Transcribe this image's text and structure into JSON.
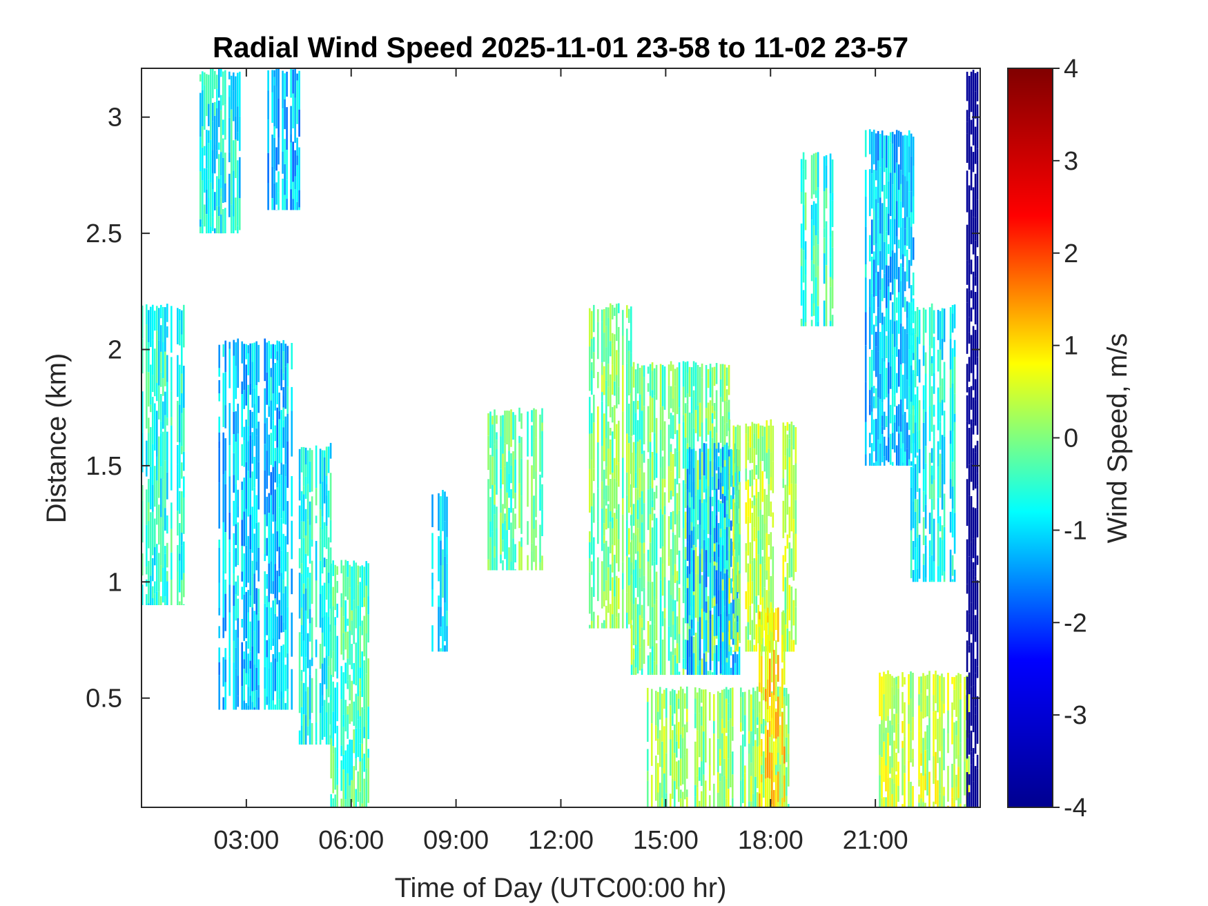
{
  "chart_data": {
    "type": "heatmap",
    "title": "Radial Wind Speed 2025-11-01 23-58 to 11-02 23-57",
    "xlabel": "Time of Day (UTC00:00 hr)",
    "ylabel": "Distance (km)",
    "colorbar_label": "Wind Speed, m/s",
    "colormap": "jet",
    "colormap_stops": [
      "#00008f",
      "#0000ff",
      "#00ffff",
      "#ffff00",
      "#ff0000",
      "#800000"
    ],
    "xlim_hours": [
      0,
      24
    ],
    "ylim": [
      0.03,
      3.21
    ],
    "clim": [
      -4,
      4
    ],
    "x_ticks": [
      {
        "value": 3,
        "label": "03:00"
      },
      {
        "value": 6,
        "label": "06:00"
      },
      {
        "value": 9,
        "label": "09:00"
      },
      {
        "value": 12,
        "label": "12:00"
      },
      {
        "value": 15,
        "label": "15:00"
      },
      {
        "value": 18,
        "label": "18:00"
      },
      {
        "value": 21,
        "label": "21:00"
      }
    ],
    "y_ticks": [
      {
        "value": 0.5,
        "label": "0.5"
      },
      {
        "value": 1,
        "label": "1"
      },
      {
        "value": 1.5,
        "label": "1.5"
      },
      {
        "value": 2,
        "label": "2"
      },
      {
        "value": 2.5,
        "label": "2.5"
      },
      {
        "value": 3,
        "label": "3"
      }
    ],
    "colorbar_ticks": [
      {
        "value": 4,
        "label": "4"
      },
      {
        "value": 3,
        "label": "3"
      },
      {
        "value": 2,
        "label": "2"
      },
      {
        "value": 1,
        "label": "1"
      },
      {
        "value": 0,
        "label": "0"
      },
      {
        "value": -1,
        "label": "-1"
      },
      {
        "value": -2,
        "label": "-2"
      },
      {
        "value": -3,
        "label": "-3"
      },
      {
        "value": -4,
        "label": "-4"
      }
    ],
    "regions": [
      {
        "t": [
          0.0,
          1.2
        ],
        "d": [
          0.9,
          2.2
        ],
        "v": -0.6
      },
      {
        "t": [
          1.6,
          2.9
        ],
        "d": [
          2.5,
          3.21
        ],
        "v": -0.8
      },
      {
        "t": [
          3.6,
          4.5
        ],
        "d": [
          2.6,
          3.21
        ],
        "v": -1.2
      },
      {
        "t": [
          2.2,
          4.3
        ],
        "d": [
          0.45,
          2.05
        ],
        "v": -1.1
      },
      {
        "t": [
          4.5,
          5.4
        ],
        "d": [
          0.3,
          1.6
        ],
        "v": -0.7
      },
      {
        "t": [
          5.4,
          6.5
        ],
        "d": [
          0.03,
          1.1
        ],
        "v": -0.4
      },
      {
        "t": [
          8.3,
          8.8
        ],
        "d": [
          0.7,
          1.4
        ],
        "v": -0.9
      },
      {
        "t": [
          9.9,
          11.5
        ],
        "d": [
          1.05,
          1.75
        ],
        "v": -0.2
      },
      {
        "t": [
          12.8,
          14.0
        ],
        "d": [
          0.8,
          2.2
        ],
        "v": 0.0
      },
      {
        "t": [
          14.0,
          16.8
        ],
        "d": [
          0.6,
          1.95
        ],
        "v": -0.1
      },
      {
        "t": [
          15.6,
          17.1
        ],
        "d": [
          0.6,
          1.6
        ],
        "v": -1.2
      },
      {
        "t": [
          16.8,
          18.8
        ],
        "d": [
          0.7,
          1.7
        ],
        "v": 0.3
      },
      {
        "t": [
          14.4,
          18.5
        ],
        "d": [
          0.03,
          0.55
        ],
        "v": 0.1
      },
      {
        "t": [
          17.6,
          18.4
        ],
        "d": [
          0.03,
          0.9
        ],
        "v": 0.9
      },
      {
        "t": [
          18.8,
          19.8
        ],
        "d": [
          2.1,
          2.85
        ],
        "v": -0.5
      },
      {
        "t": [
          20.7,
          22.1
        ],
        "d": [
          1.5,
          2.95
        ],
        "v": -1.1
      },
      {
        "t": [
          22.0,
          23.3
        ],
        "d": [
          1.0,
          2.2
        ],
        "v": -0.7
      },
      {
        "t": [
          21.1,
          23.7
        ],
        "d": [
          0.03,
          0.62
        ],
        "v": 0.4
      },
      {
        "t": [
          23.6,
          23.95
        ],
        "d": [
          0.03,
          3.21
        ],
        "v": -3.9
      }
    ]
  }
}
